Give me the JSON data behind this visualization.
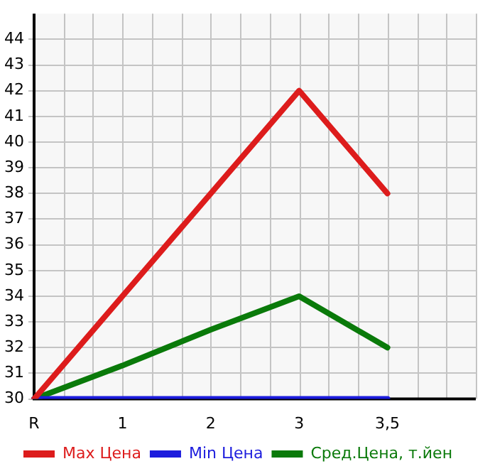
{
  "chart_data": {
    "type": "line",
    "categories": [
      "R",
      "1",
      "2",
      "3",
      "3,5",
      null
    ],
    "series": [
      {
        "name": "Max Цена",
        "color": "#dd1c1c",
        "values": [
          30,
          34,
          38,
          42,
          38,
          null
        ]
      },
      {
        "name": "Min Цена",
        "color": "#1c1cdd",
        "values": [
          30,
          30,
          30,
          30,
          30,
          null
        ]
      },
      {
        "name": "Сред.Цена, т.йен",
        "color": "#0a7a0a",
        "values": [
          30,
          31.3,
          32.7,
          34,
          32,
          null
        ]
      }
    ],
    "ylim": [
      30,
      45
    ],
    "yticks": [
      30,
      31,
      32,
      33,
      34,
      35,
      36,
      37,
      38,
      39,
      40,
      41,
      42,
      43,
      44
    ],
    "grid": true,
    "legend": "bottom",
    "marker": "none",
    "line_style": "solid"
  }
}
